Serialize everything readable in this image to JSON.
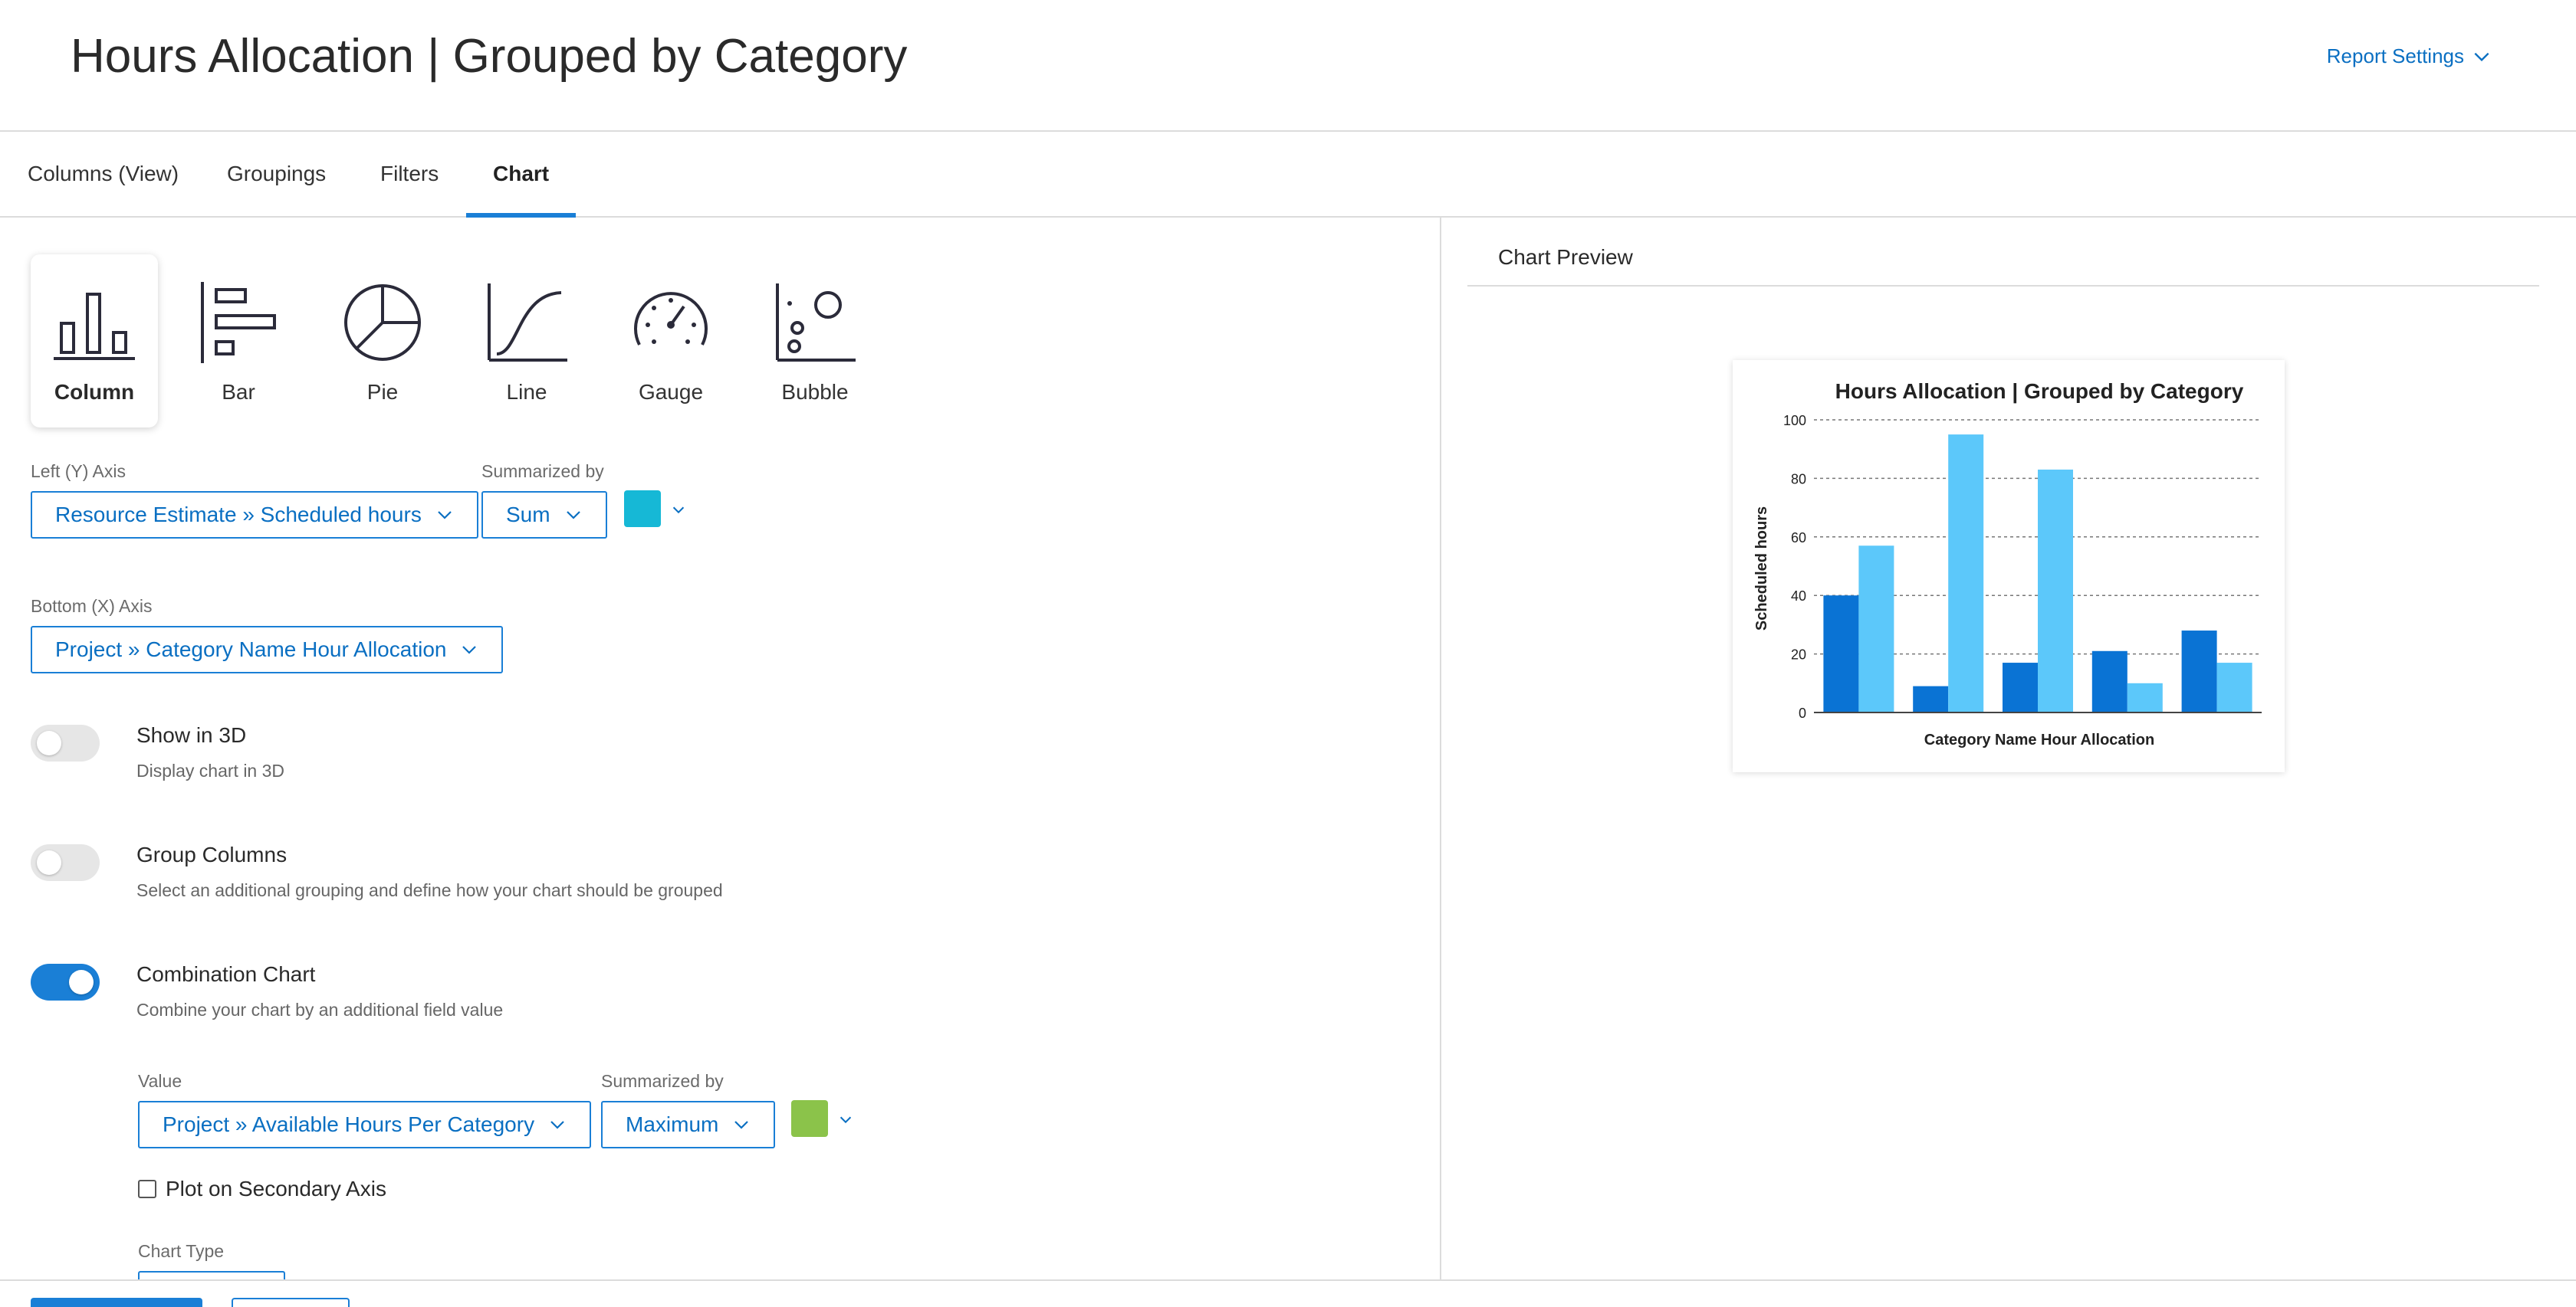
{
  "header": {
    "title": "Hours Allocation | Grouped by Category",
    "report_settings_label": "Report Settings"
  },
  "tabs": [
    {
      "label": "Columns (View)"
    },
    {
      "label": "Groupings"
    },
    {
      "label": "Filters"
    },
    {
      "label": "Chart",
      "active": true
    }
  ],
  "chart_types": [
    {
      "label": "Column",
      "icon": "column-chart-icon",
      "selected": true
    },
    {
      "label": "Bar",
      "icon": "bar-chart-icon"
    },
    {
      "label": "Pie",
      "icon": "pie-chart-icon"
    },
    {
      "label": "Line",
      "icon": "line-chart-icon"
    },
    {
      "label": "Gauge",
      "icon": "gauge-chart-icon"
    },
    {
      "label": "Bubble",
      "icon": "bubble-chart-icon"
    }
  ],
  "y_axis": {
    "label": "Left (Y) Axis",
    "value": "Resource Estimate » Scheduled hours",
    "summarized_label": "Summarized by",
    "summarized_value": "Sum",
    "color": "#16b8d6"
  },
  "x_axis": {
    "label": "Bottom (X) Axis",
    "value": "Project » Category Name Hour Allocation"
  },
  "options": {
    "show3d": {
      "title": "Show in 3D",
      "desc": "Display chart in 3D",
      "on": false
    },
    "group_columns": {
      "title": "Group Columns",
      "desc": "Select an additional grouping and define how your chart should be grouped",
      "on": false
    },
    "combination": {
      "title": "Combination Chart",
      "desc": "Combine your chart by an additional field value",
      "on": true
    }
  },
  "combination": {
    "value_label": "Value",
    "value": "Project » Available Hours Per Category",
    "summarized_label": "Summarized by",
    "summarized_value": "Maximum",
    "color": "#8bc34a",
    "secondary_axis_label": "Plot on Secondary Axis",
    "secondary_axis_checked": false,
    "chart_type_label": "Chart Type"
  },
  "preview": {
    "title": "Chart Preview"
  },
  "chart_data": {
    "type": "bar",
    "title": "Hours Allocation | Grouped by Category",
    "xlabel": "Category Name Hour Allocation",
    "ylabel": "Scheduled hours",
    "ylim": [
      0,
      100
    ],
    "yticks": [
      0,
      20,
      40,
      60,
      80,
      100
    ],
    "grid": true,
    "categories": [
      "",
      "",
      "",
      "",
      ""
    ],
    "series": [
      {
        "values": [
          40,
          9,
          17,
          21,
          28
        ],
        "color": "#0a73d4"
      },
      {
        "values": [
          57,
          95,
          83,
          10,
          17
        ],
        "color": "#5cc8fa"
      }
    ]
  }
}
